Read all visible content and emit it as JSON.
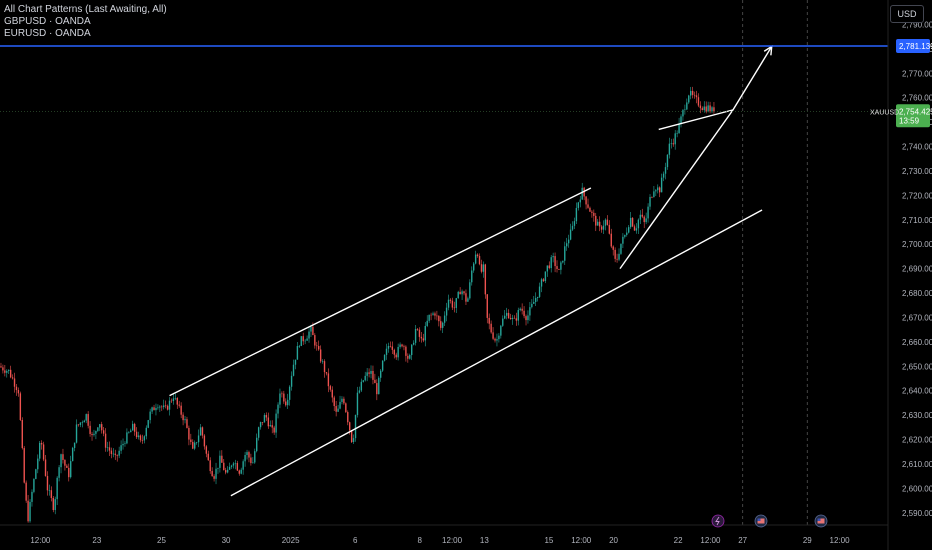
{
  "legend": {
    "title": "All Chart Patterns (Last Awaiting, All)",
    "lines": [
      "GBPUSD · OANDA",
      "EURUSD · OANDA"
    ]
  },
  "currency_button": "USD",
  "colors": {
    "background": "#000000",
    "up": "#26a69a",
    "down": "#ef5350",
    "horizontal_line": "#2962ff",
    "price_label": "#4caf50",
    "trendlines": "#ffffff"
  },
  "price_labels": {
    "horizontal": "2,781.139",
    "current_symbol": "XAUUSD",
    "current_price": "2,754.425",
    "countdown": "13:59"
  },
  "event_icons": [
    "lightning-icon",
    "us-flag-icon",
    "us-flag-icon"
  ],
  "chart_data": {
    "type": "candlestick",
    "title": "",
    "y_axis": {
      "min": 2585,
      "max": 2800,
      "ticks": [
        2590,
        2600,
        2610,
        2620,
        2630,
        2640,
        2650,
        2660,
        2670,
        2680,
        2690,
        2700,
        2710,
        2720,
        2730,
        2740,
        2750,
        2760,
        2770,
        2780,
        2790
      ],
      "tick_labels": [
        "2,590.000",
        "2,600.000",
        "2,610.000",
        "2,620.000",
        "2,630.000",
        "2,640.000",
        "2,650.000",
        "2,660.000",
        "2,670.000",
        "2,680.000",
        "2,690.000",
        "2,700.000",
        "2,710.000",
        "2,720.000",
        "2,730.000",
        "2,740.000",
        "2,750.000",
        "2,760.000",
        "2,770.000",
        "2,780.000",
        "2,790.000"
      ]
    },
    "x_axis": {
      "labels": [
        {
          "label": "12:00",
          "t": 2.5
        },
        {
          "label": "23",
          "t": 6
        },
        {
          "label": "25",
          "t": 10
        },
        {
          "label": "30",
          "t": 14
        },
        {
          "label": "2025",
          "t": 18
        },
        {
          "label": "6",
          "t": 22
        },
        {
          "label": "8",
          "t": 26
        },
        {
          "label": "12:00",
          "t": 28
        },
        {
          "label": "13",
          "t": 30
        },
        {
          "label": "15",
          "t": 34
        },
        {
          "label": "12:00",
          "t": 36
        },
        {
          "label": "20",
          "t": 38
        },
        {
          "label": "22",
          "t": 42
        },
        {
          "label": "12:00",
          "t": 44
        },
        {
          "label": "27",
          "t": 46
        },
        {
          "label": "29",
          "t": 50
        },
        {
          "label": "12:00",
          "t": 52
        }
      ],
      "range": [
        0,
        55
      ],
      "future_markers": [
        46,
        50
      ]
    },
    "horizontal_line": 2781.139,
    "current_price": 2754.425,
    "price_path": [
      [
        0,
        2650
      ],
      [
        0.6,
        2648
      ],
      [
        1.2,
        2640
      ],
      [
        1.6,
        2598
      ],
      [
        1.8,
        2588
      ],
      [
        2.2,
        2605
      ],
      [
        2.6,
        2620
      ],
      [
        3.0,
        2600
      ],
      [
        3.4,
        2592
      ],
      [
        3.8,
        2615
      ],
      [
        4.3,
        2605
      ],
      [
        4.8,
        2625
      ],
      [
        5.4,
        2630
      ],
      [
        5.8,
        2620
      ],
      [
        6.2,
        2628
      ],
      [
        6.6,
        2618
      ],
      [
        7.2,
        2612
      ],
      [
        7.8,
        2620
      ],
      [
        8.3,
        2625
      ],
      [
        8.8,
        2618
      ],
      [
        9.3,
        2630
      ],
      [
        9.8,
        2635
      ],
      [
        10.3,
        2632
      ],
      [
        10.8,
        2638
      ],
      [
        11.1,
        2633
      ],
      [
        11.5,
        2628
      ],
      [
        12.0,
        2615
      ],
      [
        12.5,
        2625
      ],
      [
        12.9,
        2612
      ],
      [
        13.3,
        2605
      ],
      [
        13.7,
        2612
      ],
      [
        14.1,
        2605
      ],
      [
        14.5,
        2612
      ],
      [
        14.9,
        2607
      ],
      [
        15.3,
        2615
      ],
      [
        15.7,
        2610
      ],
      [
        16.1,
        2625
      ],
      [
        16.5,
        2630
      ],
      [
        17.0,
        2622
      ],
      [
        17.4,
        2640
      ],
      [
        17.8,
        2635
      ],
      [
        18.2,
        2650
      ],
      [
        18.6,
        2660
      ],
      [
        19.0,
        2662
      ],
      [
        19.3,
        2665
      ],
      [
        19.7,
        2657
      ],
      [
        20.1,
        2650
      ],
      [
        20.5,
        2640
      ],
      [
        20.9,
        2630
      ],
      [
        21.3,
        2638
      ],
      [
        21.7,
        2625
      ],
      [
        21.9,
        2618
      ],
      [
        22.2,
        2638
      ],
      [
        22.6,
        2645
      ],
      [
        23.0,
        2648
      ],
      [
        23.4,
        2640
      ],
      [
        23.8,
        2652
      ],
      [
        24.2,
        2660
      ],
      [
        24.6,
        2655
      ],
      [
        25.0,
        2660
      ],
      [
        25.4,
        2652
      ],
      [
        25.8,
        2665
      ],
      [
        26.2,
        2660
      ],
      [
        26.6,
        2670
      ],
      [
        27.0,
        2672
      ],
      [
        27.4,
        2665
      ],
      [
        27.8,
        2678
      ],
      [
        28.2,
        2674
      ],
      [
        28.6,
        2682
      ],
      [
        29.0,
        2676
      ],
      [
        29.3,
        2690
      ],
      [
        29.6,
        2699
      ],
      [
        29.8,
        2688
      ],
      [
        30.0,
        2690
      ],
      [
        30.2,
        2670
      ],
      [
        30.5,
        2664
      ],
      [
        30.8,
        2660
      ],
      [
        31.1,
        2668
      ],
      [
        31.5,
        2672
      ],
      [
        31.9,
        2668
      ],
      [
        32.3,
        2674
      ],
      [
        32.7,
        2670
      ],
      [
        33.1,
        2676
      ],
      [
        33.5,
        2682
      ],
      [
        33.9,
        2690
      ],
      [
        34.3,
        2694
      ],
      [
        34.7,
        2688
      ],
      [
        35.1,
        2700
      ],
      [
        35.5,
        2706
      ],
      [
        35.8,
        2716
      ],
      [
        36.1,
        2722
      ],
      [
        36.4,
        2717
      ],
      [
        36.8,
        2711
      ],
      [
        37.2,
        2706
      ],
      [
        37.6,
        2710
      ],
      [
        37.9,
        2700
      ],
      [
        38.2,
        2692
      ],
      [
        38.5,
        2700
      ],
      [
        38.8,
        2704
      ],
      [
        39.1,
        2711
      ],
      [
        39.4,
        2706
      ],
      [
        39.7,
        2712
      ],
      [
        40.0,
        2708
      ],
      [
        40.3,
        2718
      ],
      [
        40.6,
        2724
      ],
      [
        40.9,
        2722
      ],
      [
        41.2,
        2730
      ],
      [
        41.5,
        2740
      ],
      [
        41.8,
        2743
      ],
      [
        42.1,
        2748
      ],
      [
        42.4,
        2755
      ],
      [
        42.7,
        2762
      ],
      [
        43.0,
        2760
      ],
      [
        43.3,
        2758
      ],
      [
        43.6,
        2756
      ],
      [
        43.9,
        2756
      ],
      [
        44.2,
        2754.4
      ]
    ],
    "trendlines": [
      {
        "from": [
          10.5,
          2638
        ],
        "to": [
          36.6,
          2723
        ]
      },
      {
        "from": [
          14.3,
          2597
        ],
        "to": [
          47.2,
          2714
        ]
      },
      {
        "from": [
          38.4,
          2690
        ],
        "to": [
          45.4,
          2755
        ]
      },
      {
        "from": [
          40.8,
          2747
        ],
        "to": [
          45.4,
          2755
        ]
      }
    ],
    "arrow": {
      "from": [
        45.4,
        2755
      ],
      "to": [
        47.8,
        2781
      ]
    }
  }
}
